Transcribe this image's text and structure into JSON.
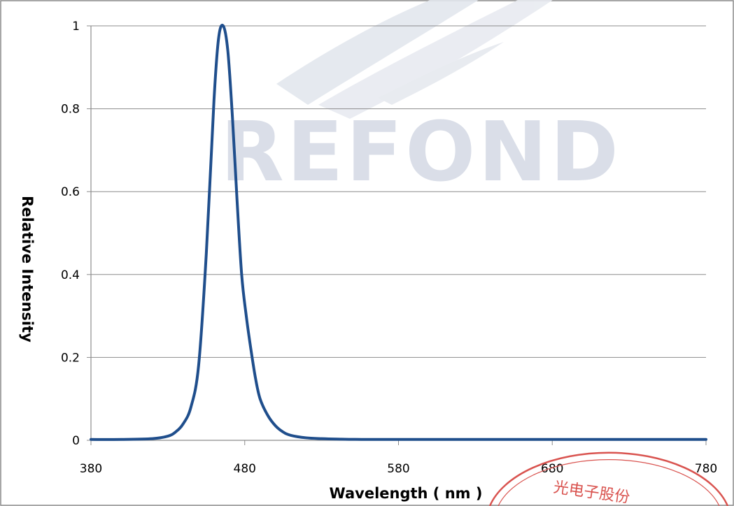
{
  "chart_data": {
    "type": "line",
    "title": "",
    "xlabel": "Wavelength ( nm )",
    "ylabel": "Relative  Intensity",
    "xlim": [
      380,
      780
    ],
    "ylim": [
      0,
      1
    ],
    "x_ticks": [
      "380",
      "480",
      "580",
      "680",
      "780"
    ],
    "y_ticks": [
      "0",
      "0.2",
      "0.4",
      "0.6",
      "0.8",
      "1"
    ],
    "grid": "horizontal",
    "series": [
      {
        "color": "#1f4e8c",
        "x": [
          380,
          400,
          420,
          430,
          435,
          440,
          445,
          450,
          455,
          460,
          463,
          466,
          469,
          472,
          475,
          478,
          481,
          484,
          487,
          490,
          495,
          500,
          505,
          510,
          520,
          530,
          540,
          560,
          600,
          650,
          700,
          780
        ],
        "y": [
          0.002,
          0.002,
          0.004,
          0.01,
          0.02,
          0.04,
          0.08,
          0.18,
          0.45,
          0.82,
          0.97,
          1.0,
          0.94,
          0.78,
          0.58,
          0.4,
          0.3,
          0.22,
          0.15,
          0.1,
          0.06,
          0.035,
          0.02,
          0.012,
          0.006,
          0.004,
          0.003,
          0.002,
          0.002,
          0.002,
          0.002,
          0.002
        ]
      }
    ]
  },
  "watermark": {
    "brand": "REFOND",
    "stamp_text": "光电子股份",
    "stamp_color": "#d9534f"
  }
}
